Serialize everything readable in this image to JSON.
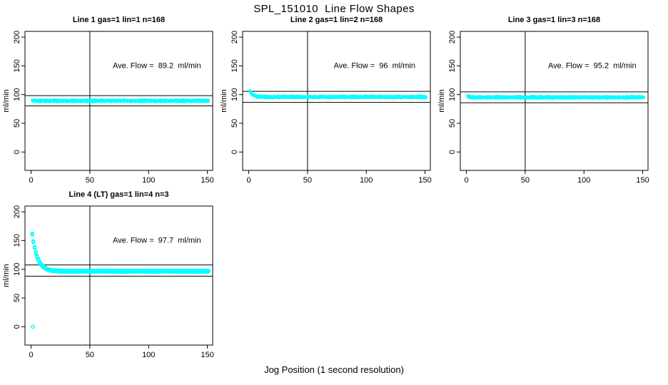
{
  "page": {
    "main_title": "SPL_151010  Line Flow Shapes",
    "x_axis_label": "Jog Position (1 second resolution)",
    "background_color": "#ffffff",
    "point_color": "#00ffff",
    "axis_color": "#000000"
  },
  "chart_data": [
    {
      "type": "scatter",
      "title": "Line 1 gas=1 lin=1 n=168",
      "annotation": "Ave. Flow =  89.2  ml/min",
      "ave_flow_ml_min": 89.2,
      "n_jogs": 168,
      "ylabel": "ml/min",
      "xticks": [
        0,
        50,
        100,
        150
      ],
      "yticks": [
        0,
        50,
        100,
        150,
        200
      ],
      "xlim": [
        -5.2,
        154.5
      ],
      "ylim": [
        -32,
        210
      ],
      "grid": false,
      "vline_x": 50,
      "ref_lines_y": [
        98.1,
        80.3
      ],
      "annotation_pos": {
        "x": 107,
        "y": 146
      },
      "point_style": "band",
      "band": {
        "x_start": 1,
        "x_end": 151,
        "y_start": 90,
        "y_settle": 89.2,
        "decay_tau": 1.2,
        "spread": 1.7
      },
      "outliers": []
    },
    {
      "type": "scatter",
      "title": "Line 2 gas=1 lin=2 n=168",
      "annotation": "Ave. Flow =  96  ml/min",
      "ave_flow_ml_min": 96,
      "n_jogs": 168,
      "ylabel": "ml/min",
      "xticks": [
        0,
        50,
        100,
        150
      ],
      "yticks": [
        0,
        50,
        100,
        150,
        200
      ],
      "xlim": [
        -5.2,
        154.5
      ],
      "ylim": [
        -32,
        210
      ],
      "grid": false,
      "vline_x": 50,
      "ref_lines_y": [
        105.6,
        86.4
      ],
      "annotation_pos": {
        "x": 107,
        "y": 146
      },
      "point_style": "band",
      "band": {
        "x_start": 1,
        "x_end": 151,
        "y_start": 106,
        "y_settle": 95.8,
        "decay_tau": 2.6,
        "spread": 1.6
      },
      "outliers": []
    },
    {
      "type": "scatter",
      "title": "Line 3 gas=1 lin=3 n=168",
      "annotation": "Ave. Flow =  95.2  ml/min",
      "ave_flow_ml_min": 95.2,
      "n_jogs": 168,
      "ylabel": "ml/min",
      "xticks": [
        0,
        50,
        100,
        150
      ],
      "yticks": [
        0,
        50,
        100,
        150,
        200
      ],
      "xlim": [
        -5.2,
        154.5
      ],
      "ylim": [
        -32,
        210
      ],
      "grid": false,
      "vline_x": 50,
      "ref_lines_y": [
        104.7,
        85.7
      ],
      "annotation_pos": {
        "x": 107,
        "y": 146
      },
      "point_style": "band",
      "band": {
        "x_start": 1,
        "x_end": 151,
        "y_start": 97.5,
        "y_settle": 95.2,
        "decay_tau": 1.5,
        "spread": 1.7
      },
      "outliers": []
    },
    {
      "type": "scatter",
      "title": "Line 4 (LT) gas=1 lin=4 n=3",
      "annotation": "Ave. Flow =  97.7  ml/min",
      "ave_flow_ml_min": 97.7,
      "n_jogs": 3,
      "ylabel": "ml/min",
      "xticks": [
        0,
        50,
        100,
        150
      ],
      "yticks": [
        0,
        50,
        100,
        150,
        200
      ],
      "xlim": [
        -5.2,
        154.5
      ],
      "ylim": [
        -32,
        210
      ],
      "grid": false,
      "vline_x": 50,
      "ref_lines_y": [
        107.5,
        87.9
      ],
      "annotation_pos": {
        "x": 107,
        "y": 146
      },
      "point_style": "circles",
      "band": {
        "x_start": 1,
        "x_end": 151,
        "y_start": 161,
        "y_settle": 96.5,
        "decay_tau": 4.4,
        "spread": 0.9,
        "traces": 3
      },
      "outliers": [
        [
          1.5,
          0
        ]
      ]
    }
  ]
}
